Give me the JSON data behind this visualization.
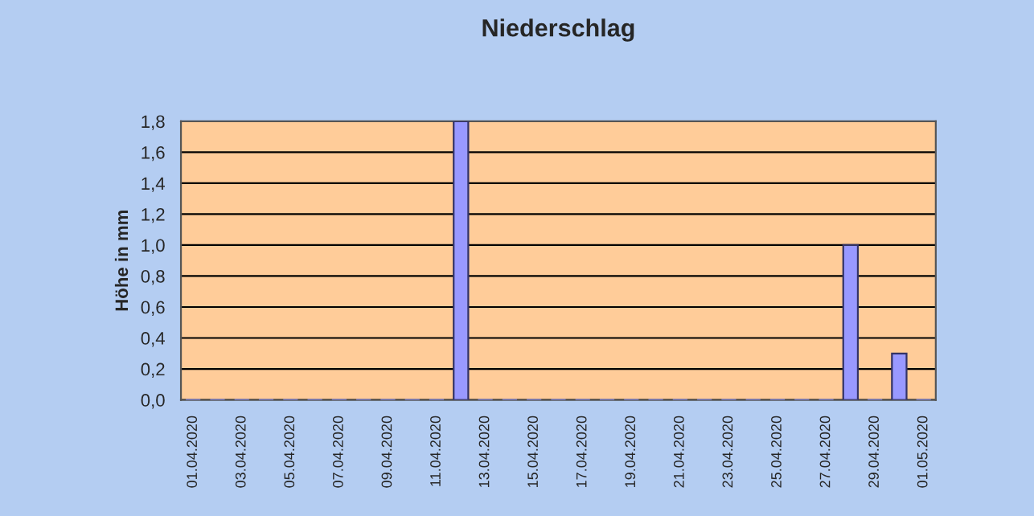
{
  "chart_data": {
    "type": "bar",
    "title": "Niederschlag",
    "ylabel": "Höhe in mm",
    "categories": [
      "01.04.2020",
      null,
      "03.04.2020",
      null,
      "05.04.2020",
      null,
      "07.04.2020",
      null,
      "09.04.2020",
      null,
      "11.04.2020",
      null,
      "13.04.2020",
      null,
      "15.04.2020",
      null,
      "17.04.2020",
      null,
      "19.04.2020",
      null,
      "21.04.2020",
      null,
      "23.04.2020",
      null,
      "25.04.2020",
      null,
      "27.04.2020",
      null,
      "29.04.2020",
      null,
      "01.05.2020"
    ],
    "values": [
      0,
      0,
      0,
      0,
      0,
      0,
      0,
      0,
      0,
      0,
      0,
      1.8,
      0,
      0,
      0,
      0,
      0,
      0,
      0,
      0,
      0,
      0,
      0,
      0,
      0,
      0,
      0,
      1.0,
      0,
      0.3,
      0
    ],
    "color": "#9999ff",
    "ylim": [
      0,
      1.8
    ],
    "yticks": [
      {
        "value": 0,
        "label": "0,0"
      },
      {
        "value": 0.2,
        "label": "0,2"
      },
      {
        "value": 0.4,
        "label": "0,4"
      },
      {
        "value": 0.6,
        "label": "0,6"
      },
      {
        "value": 0.8,
        "label": "0,8"
      },
      {
        "value": 1.0,
        "label": "1,0"
      },
      {
        "value": 1.2,
        "label": "1,2"
      },
      {
        "value": 1.4,
        "label": "1,4"
      },
      {
        "value": 1.6,
        "label": "1,6"
      },
      {
        "value": 1.8,
        "label": "1,8"
      }
    ],
    "grid": "y",
    "legend": false
  }
}
